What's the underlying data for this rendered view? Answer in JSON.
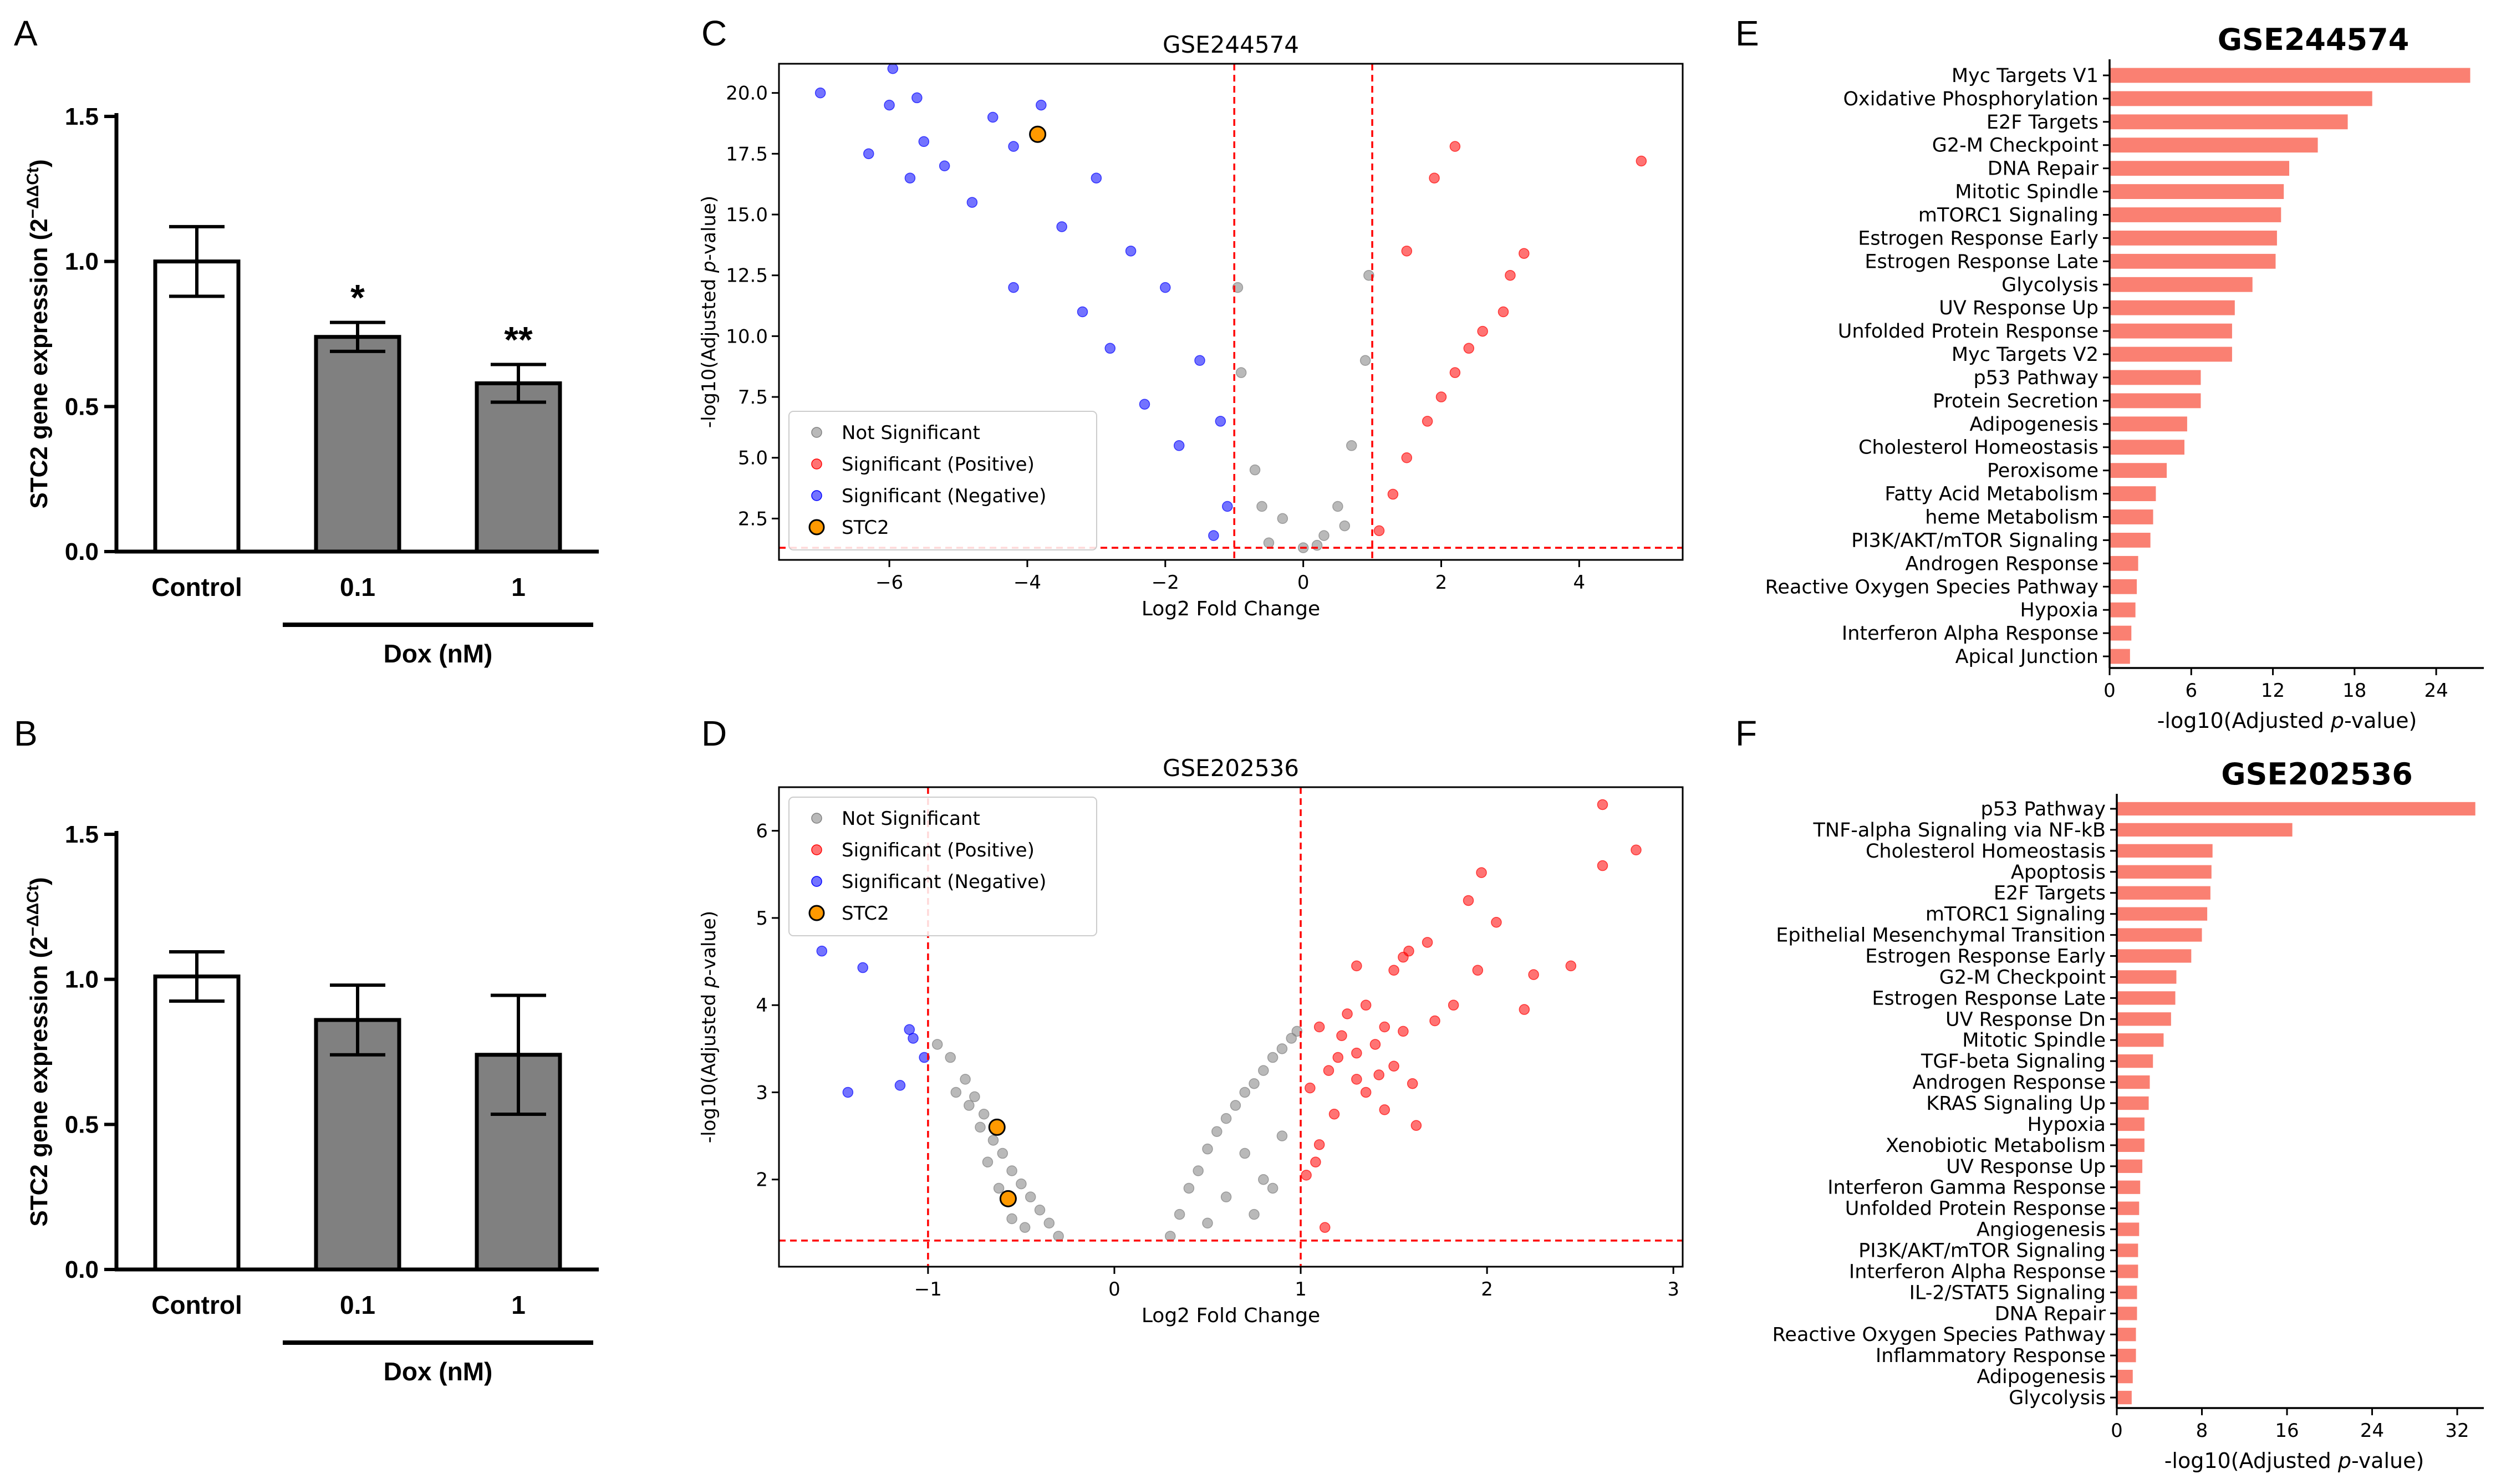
{
  "panel_labels": [
    "A",
    "B",
    "C",
    "D",
    "E",
    "F"
  ],
  "chart_data": [
    {
      "id": "A",
      "type": "bar",
      "ylabel": "STC2 gene expression (2",
      "ylabel_sup": "−ΔΔCt",
      "ylabel_close": ")",
      "ylim": [
        0,
        1.5
      ],
      "yticks": [
        "0.0",
        "0.5",
        "1.0",
        "1.5"
      ],
      "categories": [
        "Control",
        "0.1",
        "1"
      ],
      "values": [
        1.0,
        0.74,
        0.58
      ],
      "errors": [
        0.12,
        0.05,
        0.065
      ],
      "fills": [
        "#ffffff",
        "#808080",
        "#808080"
      ],
      "significance": [
        "",
        "*",
        "**"
      ],
      "group_label": "Dox (nM)"
    },
    {
      "id": "B",
      "type": "bar",
      "ylabel": "STC2 gene expression (2",
      "ylabel_sup": "−ΔΔCt",
      "ylabel_close": ")",
      "ylim": [
        0,
        1.5
      ],
      "yticks": [
        "0.0",
        "0.5",
        "1.0",
        "1.5"
      ],
      "categories": [
        "Control",
        "0.1",
        "1"
      ],
      "values": [
        1.01,
        0.86,
        0.74
      ],
      "errors": [
        0.085,
        0.12,
        0.205
      ],
      "fills": [
        "#ffffff",
        "#808080",
        "#808080"
      ],
      "significance": [
        "",
        "",
        ""
      ],
      "group_label": "Dox (nM)"
    },
    {
      "id": "C",
      "type": "scatter",
      "title": "GSE244574",
      "xlabel": "Log2 Fold Change",
      "ylabel_pre": "-log10(Adjusted ",
      "ylabel_p": "p",
      "ylabel_post": "-value)",
      "xlim": [
        -7.6,
        5.5
      ],
      "ylim": [
        0.8,
        21.2
      ],
      "xticks": [
        -6,
        -4,
        -2,
        0,
        2,
        4
      ],
      "xtick_labels": [
        "−6",
        "−4",
        "−2",
        "0",
        "2",
        "4"
      ],
      "yticks": [
        2.5,
        5.0,
        7.5,
        10.0,
        12.5,
        15.0,
        17.5,
        20.0
      ],
      "ytick_labels": [
        "2.5",
        "5.0",
        "7.5",
        "10.0",
        "12.5",
        "15.0",
        "17.5",
        "20.0"
      ],
      "vlines": [
        -1,
        1
      ],
      "hline": 1.3,
      "legend": [
        "Not Significant",
        "Significant (Positive)",
        "Significant (Negative)",
        "STC2"
      ],
      "legend_loc": "lower-left",
      "series": [
        {
          "name": "Significant (Negative)",
          "color": "#0000ff",
          "points": [
            [
              -7.0,
              20.0
            ],
            [
              -5.95,
              21.0
            ],
            [
              -6.0,
              19.5
            ],
            [
              -6.3,
              17.5
            ],
            [
              -5.6,
              19.8
            ],
            [
              -5.5,
              18.0
            ],
            [
              -5.2,
              17.0
            ],
            [
              -5.7,
              16.5
            ],
            [
              -4.5,
              19.0
            ],
            [
              -4.2,
              17.8
            ],
            [
              -3.8,
              19.5
            ],
            [
              -4.8,
              15.5
            ],
            [
              -3.5,
              14.5
            ],
            [
              -3.0,
              16.5
            ],
            [
              -2.5,
              13.5
            ],
            [
              -2.0,
              12.0
            ],
            [
              -4.2,
              12.0
            ],
            [
              -1.5,
              9.0
            ],
            [
              -1.2,
              6.5
            ],
            [
              -1.8,
              5.5
            ],
            [
              -2.3,
              7.2
            ],
            [
              -1.1,
              3.0
            ],
            [
              -1.3,
              1.8
            ],
            [
              -3.2,
              11.0
            ],
            [
              -2.8,
              9.5
            ]
          ]
        },
        {
          "name": "Significant (Positive)",
          "color": "#ff0000",
          "points": [
            [
              4.9,
              17.2
            ],
            [
              3.2,
              13.4
            ],
            [
              3.0,
              12.5
            ],
            [
              2.9,
              11.0
            ],
            [
              2.6,
              10.2
            ],
            [
              2.4,
              9.5
            ],
            [
              2.2,
              8.5
            ],
            [
              2.0,
              7.5
            ],
            [
              1.8,
              6.5
            ],
            [
              1.5,
              5.0
            ],
            [
              1.3,
              3.5
            ],
            [
              1.1,
              2.0
            ],
            [
              2.2,
              17.8
            ],
            [
              1.9,
              16.5
            ],
            [
              1.5,
              13.5
            ]
          ]
        },
        {
          "name": "Not Significant",
          "color": "#808080",
          "points": [
            [
              -0.5,
              1.5
            ],
            [
              -0.3,
              2.5
            ],
            [
              -0.7,
              4.5
            ],
            [
              -0.9,
              8.5
            ],
            [
              -0.95,
              12.0
            ],
            [
              -0.6,
              3.0
            ],
            [
              0.0,
              1.3
            ],
            [
              0.3,
              1.8
            ],
            [
              0.5,
              3.0
            ],
            [
              0.7,
              5.5
            ],
            [
              0.9,
              9.0
            ],
            [
              0.95,
              12.5
            ],
            [
              0.6,
              2.2
            ],
            [
              0.2,
              1.4
            ]
          ]
        },
        {
          "name": "STC2",
          "color": "#ff9900",
          "points": [
            [
              -3.85,
              18.3
            ]
          ]
        }
      ]
    },
    {
      "id": "D",
      "type": "scatter",
      "title": "GSE202536",
      "xlabel": "Log2 Fold Change",
      "ylabel_pre": "-log10(Adjusted ",
      "ylabel_p": "p",
      "ylabel_post": "-value)",
      "xlim": [
        -1.8,
        3.05
      ],
      "ylim": [
        1.0,
        6.5
      ],
      "xticks": [
        -1,
        0,
        1,
        2,
        3
      ],
      "xtick_labels": [
        "−1",
        "0",
        "1",
        "2",
        "3"
      ],
      "yticks": [
        2,
        3,
        4,
        5,
        6
      ],
      "ytick_labels": [
        "2",
        "3",
        "4",
        "5",
        "6"
      ],
      "vlines": [
        -1,
        1
      ],
      "hline": 1.3,
      "legend": [
        "Not Significant",
        "Significant (Positive)",
        "Significant (Negative)",
        "STC2"
      ],
      "legend_loc": "upper-left",
      "series": [
        {
          "name": "Significant (Negative)",
          "color": "#0000ff",
          "points": [
            [
              -1.57,
              4.62
            ],
            [
              -1.35,
              4.43
            ],
            [
              -1.1,
              3.72
            ],
            [
              -1.08,
              3.62
            ],
            [
              -1.43,
              3.0
            ],
            [
              -1.15,
              3.08
            ],
            [
              -1.02,
              3.4
            ]
          ]
        },
        {
          "name": "Significant (Positive)",
          "color": "#ff0000",
          "points": [
            [
              2.62,
              6.3
            ],
            [
              2.8,
              5.78
            ],
            [
              2.62,
              5.6
            ],
            [
              1.97,
              5.52
            ],
            [
              1.9,
              5.2
            ],
            [
              2.05,
              4.95
            ],
            [
              1.68,
              4.72
            ],
            [
              1.58,
              4.62
            ],
            [
              1.55,
              4.55
            ],
            [
              1.3,
              4.45
            ],
            [
              1.5,
              4.4
            ],
            [
              2.45,
              4.45
            ],
            [
              2.25,
              4.35
            ],
            [
              2.2,
              3.95
            ],
            [
              1.95,
              4.4
            ],
            [
              1.82,
              4.0
            ],
            [
              1.72,
              3.82
            ],
            [
              1.55,
              3.7
            ],
            [
              1.45,
              3.75
            ],
            [
              1.4,
              3.55
            ],
            [
              1.3,
              3.45
            ],
            [
              1.2,
              3.4
            ],
            [
              1.15,
              3.25
            ],
            [
              1.35,
              3.0
            ],
            [
              1.45,
              2.8
            ],
            [
              1.62,
              2.62
            ],
            [
              1.1,
              2.4
            ],
            [
              1.08,
              2.2
            ],
            [
              1.03,
              2.05
            ],
            [
              1.13,
              1.45
            ],
            [
              1.5,
              3.3
            ],
            [
              1.25,
              3.9
            ],
            [
              1.1,
              3.75
            ],
            [
              1.05,
              3.05
            ],
            [
              1.18,
              2.75
            ],
            [
              1.3,
              3.15
            ],
            [
              1.42,
              3.2
            ],
            [
              1.6,
              3.1
            ],
            [
              1.35,
              4.0
            ],
            [
              1.22,
              3.65
            ]
          ]
        },
        {
          "name": "Not Significant",
          "color": "#808080",
          "points": [
            [
              -0.95,
              3.55
            ],
            [
              -0.88,
              3.4
            ],
            [
              -0.8,
              3.15
            ],
            [
              -0.75,
              2.95
            ],
            [
              -0.7,
              2.75
            ],
            [
              -0.72,
              2.6
            ],
            [
              -0.65,
              2.45
            ],
            [
              -0.6,
              2.3
            ],
            [
              -0.55,
              2.1
            ],
            [
              -0.5,
              1.95
            ],
            [
              -0.45,
              1.8
            ],
            [
              -0.4,
              1.65
            ],
            [
              -0.35,
              1.5
            ],
            [
              -0.3,
              1.35
            ],
            [
              -0.62,
              1.9
            ],
            [
              -0.55,
              1.55
            ],
            [
              -0.48,
              1.45
            ],
            [
              -0.85,
              3.0
            ],
            [
              -0.78,
              2.85
            ],
            [
              -0.68,
              2.2
            ],
            [
              0.3,
              1.35
            ],
            [
              0.35,
              1.6
            ],
            [
              0.4,
              1.9
            ],
            [
              0.45,
              2.1
            ],
            [
              0.5,
              2.35
            ],
            [
              0.55,
              2.55
            ],
            [
              0.6,
              2.7
            ],
            [
              0.65,
              2.85
            ],
            [
              0.7,
              3.0
            ],
            [
              0.75,
              3.1
            ],
            [
              0.8,
              3.25
            ],
            [
              0.85,
              3.4
            ],
            [
              0.9,
              3.5
            ],
            [
              0.95,
              3.62
            ],
            [
              0.98,
              3.7
            ],
            [
              0.7,
              2.3
            ],
            [
              0.6,
              1.8
            ],
            [
              0.8,
              2.0
            ],
            [
              0.9,
              2.5
            ],
            [
              0.5,
              1.5
            ],
            [
              0.75,
              1.6
            ],
            [
              0.85,
              1.9
            ]
          ]
        },
        {
          "name": "STC2",
          "color": "#ff9900",
          "points": [
            [
              -0.63,
              2.6
            ],
            [
              -0.57,
              1.78
            ]
          ]
        }
      ]
    },
    {
      "id": "E",
      "type": "bar",
      "orientation": "horizontal",
      "title": "GSE244574",
      "xlabel_pre": "-log10(Adjusted ",
      "xlabel_p": "p",
      "xlabel_post": "-value)",
      "xlim": [
        0,
        27.5
      ],
      "xticks": [
        0,
        6,
        12,
        18,
        24
      ],
      "xtick_labels": [
        "0",
        "6",
        "12",
        "18",
        "24"
      ],
      "color": "#fa8072",
      "categories": [
        "Myc Targets V1",
        "Oxidative Phosphorylation",
        "E2F Targets",
        "G2-M Checkpoint",
        "DNA Repair",
        "Mitotic Spindle",
        "mTORC1 Signaling",
        "Estrogen Response Early",
        "Estrogen Response Late",
        "Glycolysis",
        "UV Response Up",
        "Unfolded Protein Response",
        "Myc Targets V2",
        "p53 Pathway",
        "Protein Secretion",
        "Adipogenesis",
        "Cholesterol Homeostasis",
        "Peroxisome",
        "Fatty Acid Metabolism",
        "heme Metabolism",
        "PI3K/AKT/mTOR  Signaling",
        "Androgen Response",
        "Reactive Oxygen Species Pathway",
        "Hypoxia",
        "Interferon Alpha Response",
        "Apical Junction"
      ],
      "values": [
        26.5,
        19.3,
        17.5,
        15.3,
        13.2,
        12.8,
        12.6,
        12.3,
        12.2,
        10.5,
        9.2,
        9.0,
        9.0,
        6.7,
        6.7,
        5.7,
        5.5,
        4.2,
        3.4,
        3.2,
        3.0,
        2.1,
        2.0,
        1.9,
        1.6,
        1.5
      ]
    },
    {
      "id": "F",
      "type": "bar",
      "orientation": "horizontal",
      "title": "GSE202536",
      "xlabel_pre": "-log10(Adjusted ",
      "xlabel_p": "p",
      "xlabel_post": "-value)",
      "xlim": [
        0,
        34.5
      ],
      "xticks": [
        0,
        8,
        16,
        24,
        32
      ],
      "xtick_labels": [
        "0",
        "8",
        "16",
        "24",
        "32"
      ],
      "color": "#fa8072",
      "categories": [
        "p53 Pathway",
        "TNF-alpha Signaling via NF-kB",
        "Cholesterol Homeostasis",
        "Apoptosis",
        "E2F Targets",
        "mTORC1 Signaling",
        "Epithelial Mesenchymal Transition",
        "Estrogen Response Early",
        "G2-M Checkpoint",
        "Estrogen Response Late",
        "UV Response Dn",
        "Mitotic Spindle",
        "TGF-beta Signaling",
        "Androgen Response",
        "KRAS Signaling Up",
        "Hypoxia",
        "Xenobiotic Metabolism",
        "UV Response Up",
        "Interferon Gamma Response",
        "Unfolded Protein Response",
        "Angiogenesis",
        "PI3K/AKT/mTOR  Signaling",
        "Interferon Alpha Response",
        "IL-2/STAT5 Signaling",
        "DNA Repair",
        "Reactive Oxygen Species Pathway",
        "Inflammatory Response",
        "Adipogenesis",
        "Glycolysis"
      ],
      "values": [
        33.7,
        16.5,
        9.0,
        8.9,
        8.8,
        8.5,
        8.0,
        7.0,
        5.6,
        5.5,
        5.1,
        4.4,
        3.4,
        3.1,
        3.0,
        2.6,
        2.6,
        2.4,
        2.2,
        2.1,
        2.1,
        2.0,
        2.0,
        1.9,
        1.9,
        1.8,
        1.8,
        1.5,
        1.4
      ]
    }
  ]
}
